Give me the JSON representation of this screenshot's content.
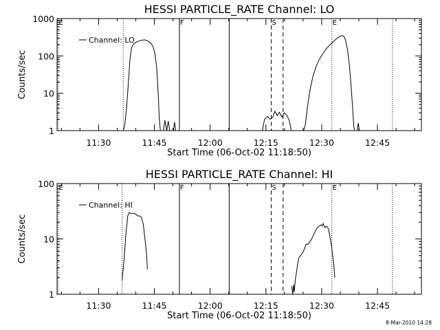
{
  "chart_data": [
    {
      "type": "line",
      "title": "HESSI PARTICLE_RATE Channel: LO",
      "xlabel": "Start Time (06-Oct-02 11:18:50)",
      "ylabel": "Counts/sec",
      "x_unit": "minutes since 11:18:50",
      "xlim": [
        0,
        98
      ],
      "ylim": [
        1,
        1000
      ],
      "yscale": "log",
      "x_tick_values": [
        11.17,
        26.17,
        41.17,
        56.17,
        71.17,
        86.17
      ],
      "x_tick_labels": [
        "11:30",
        "11:45",
        "12:00",
        "12:15",
        "12:30",
        "12:45"
      ],
      "y_tick_values": [
        1,
        10,
        100,
        1000
      ],
      "y_tick_labels": [
        "1",
        "10",
        "100",
        "1000"
      ],
      "legend": {
        "label": "Channel: LO",
        "position": "top-left"
      },
      "series": [
        {
          "name": "Channel: LO",
          "segments": [
            [
              [
                17.8,
                1
              ],
              [
                18.2,
                1.4
              ],
              [
                18.7,
                4
              ],
              [
                19.2,
                20
              ],
              [
                19.6,
                80
              ],
              [
                20.0,
                160
              ],
              [
                20.6,
                210
              ],
              [
                21.5,
                240
              ],
              [
                22.5,
                260
              ],
              [
                23.5,
                270
              ],
              [
                24.5,
                250
              ],
              [
                25.2,
                220
              ],
              [
                25.8,
                180
              ],
              [
                26.3,
                120
              ],
              [
                26.8,
                50
              ],
              [
                27.2,
                10
              ],
              [
                27.5,
                2
              ],
              [
                27.8,
                1
              ]
            ],
            [
              [
                28.6,
                1
              ],
              [
                29.0,
                1.9
              ],
              [
                29.5,
                1
              ],
              [
                29.9,
                1.8
              ],
              [
                30.3,
                1
              ]
            ],
            [
              [
                31.3,
                1
              ],
              [
                31.6,
                1.7
              ],
              [
                31.9,
                1
              ]
            ],
            [
              [
                55.2,
                1
              ],
              [
                55.8,
                2.0
              ],
              [
                56.6,
                2.4
              ],
              [
                57.3,
                2.0
              ],
              [
                58.0,
                2.3
              ],
              [
                58.6,
                3.3
              ],
              [
                59.2,
                2.5
              ],
              [
                59.8,
                3.1
              ],
              [
                60.5,
                2.3
              ],
              [
                61.1,
                3.0
              ],
              [
                61.8,
                2.6
              ],
              [
                62.5,
                1.8
              ],
              [
                63.0,
                1
              ]
            ],
            [
              [
                66.3,
                1
              ],
              [
                66.8,
                1.5
              ],
              [
                67.3,
                4
              ],
              [
                68.0,
                12
              ],
              [
                68.8,
                28
              ],
              [
                69.6,
                50
              ],
              [
                70.5,
                80
              ],
              [
                71.4,
                110
              ],
              [
                72.3,
                150
              ],
              [
                73.2,
                190
              ],
              [
                74.1,
                230
              ],
              [
                75.0,
                280
              ],
              [
                75.9,
                330
              ],
              [
                76.6,
                350
              ],
              [
                77.1,
                340
              ],
              [
                77.6,
                260
              ],
              [
                78.1,
                150
              ],
              [
                78.6,
                60
              ],
              [
                79.1,
                15
              ],
              [
                79.5,
                4
              ],
              [
                79.8,
                1.3
              ],
              [
                80.0,
                1
              ]
            ],
            [
              [
                80.7,
                1
              ],
              [
                81.0,
                1.6
              ],
              [
                81.3,
                1
              ]
            ]
          ]
        }
      ],
      "annotations": [
        {
          "text": "E",
          "x": 0.3,
          "style": "dotted"
        },
        {
          "text": "",
          "x": 17.8,
          "style": "dotted"
        },
        {
          "text": "F",
          "x": 32.9,
          "style": "solid"
        },
        {
          "text": "",
          "x": 46.3,
          "style": "solid"
        },
        {
          "text": "S",
          "x": 57.6,
          "style": "dashed"
        },
        {
          "text": "",
          "x": 60.8,
          "style": "dashed"
        },
        {
          "text": "E",
          "x": 73.9,
          "style": "dotted"
        },
        {
          "text": "",
          "x": 90.2,
          "style": "dotted"
        }
      ]
    },
    {
      "type": "line",
      "title": "HESSI PARTICLE_RATE Channel: HI",
      "xlabel": "Start Time (06-Oct-02 11:18:50)",
      "ylabel": "Counts/sec",
      "x_unit": "minutes since 11:18:50",
      "xlim": [
        0,
        98
      ],
      "ylim": [
        1,
        100
      ],
      "yscale": "log",
      "x_tick_values": [
        11.17,
        26.17,
        41.17,
        56.17,
        71.17,
        86.17
      ],
      "x_tick_labels": [
        "11:30",
        "11:45",
        "12:00",
        "12:15",
        "12:30",
        "12:45"
      ],
      "y_tick_values": [
        1,
        10,
        100
      ],
      "y_tick_labels": [
        "1",
        "10",
        "100"
      ],
      "legend": {
        "label": "Channel: HI",
        "position": "top-left"
      },
      "series": [
        {
          "name": "Channel: HI",
          "segments": [
            [
              [
                17.5,
                1.8
              ],
              [
                18.0,
                4
              ],
              [
                18.5,
                12
              ],
              [
                19.0,
                26
              ],
              [
                19.4,
                30
              ],
              [
                19.8,
                29
              ],
              [
                20.5,
                29
              ],
              [
                21.2,
                28
              ],
              [
                21.7,
                26
              ],
              [
                22.2,
                26
              ],
              [
                22.6,
                25
              ],
              [
                22.9,
                22
              ],
              [
                23.2,
                18
              ],
              [
                23.5,
                12
              ],
              [
                23.8,
                8
              ],
              [
                24.1,
                5
              ],
              [
                24.3,
                2.8
              ]
            ],
            [
              [
                63.1,
                1.4
              ],
              [
                63.4,
                1
              ],
              [
                63.6,
                1.5
              ],
              [
                63.8,
                1.1
              ],
              [
                64.1,
                1.9
              ],
              [
                64.4,
                2.5
              ],
              [
                64.7,
                3.5
              ],
              [
                65.0,
                4.5
              ],
              [
                65.5,
                5
              ],
              [
                66.0,
                5.5
              ],
              [
                66.5,
                6.5
              ],
              [
                67.0,
                8
              ],
              [
                67.5,
                8
              ],
              [
                68.0,
                9
              ],
              [
                68.5,
                10
              ],
              [
                69.0,
                12
              ],
              [
                69.5,
                14
              ],
              [
                70.0,
                16
              ],
              [
                70.5,
                17
              ],
              [
                71.0,
                18
              ],
              [
                71.3,
                17
              ],
              [
                71.6,
                19
              ],
              [
                72.0,
                16
              ],
              [
                72.5,
                17
              ],
              [
                73.0,
                15
              ],
              [
                73.5,
                10
              ],
              [
                74.0,
                6
              ],
              [
                74.4,
                3.5
              ],
              [
                74.7,
                2
              ]
            ]
          ]
        }
      ],
      "annotations": [
        {
          "text": "E",
          "x": 0.3,
          "style": "dotted"
        },
        {
          "text": "",
          "x": 17.5,
          "style": "dotted"
        },
        {
          "text": "F",
          "x": 32.9,
          "style": "solid"
        },
        {
          "text": "",
          "x": 46.3,
          "style": "solid"
        },
        {
          "text": "S",
          "x": 57.6,
          "style": "dashed"
        },
        {
          "text": "",
          "x": 60.8,
          "style": "dashed"
        },
        {
          "text": "E",
          "x": 73.9,
          "style": "dotted"
        },
        {
          "text": "",
          "x": 90.2,
          "style": "dotted"
        }
      ]
    }
  ],
  "footer": {
    "timestamp": "8-Mar-2010 14:28"
  }
}
